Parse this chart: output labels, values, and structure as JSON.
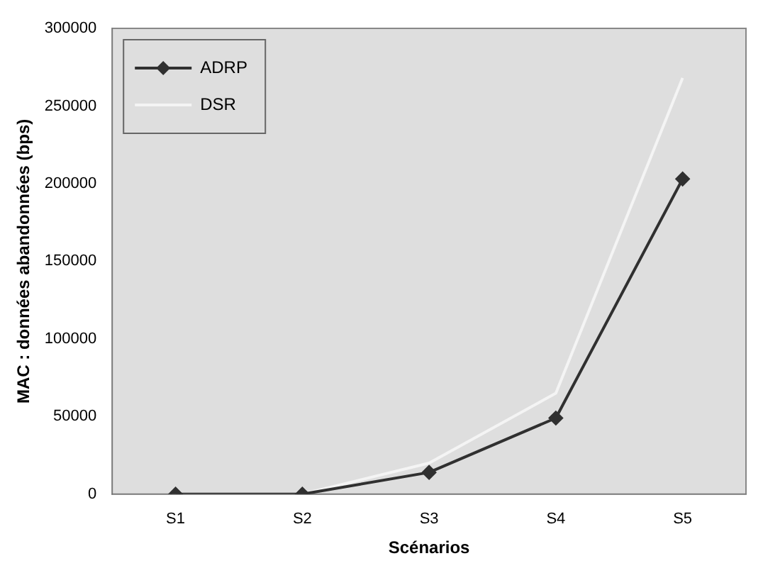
{
  "chart_data": {
    "type": "line",
    "xlabel": "Scénarios",
    "ylabel": "MAC : données abandonnées (bps)",
    "categories": [
      "S1",
      "S2",
      "S3",
      "S4",
      "S5"
    ],
    "series": [
      {
        "name": "ADRP",
        "color": "#303030",
        "values": [
          0,
          0,
          14000,
          49000,
          203000
        ],
        "marker": "diamond"
      },
      {
        "name": "DSR",
        "color": "#f4f4f4",
        "values": [
          0,
          0,
          20000,
          65000,
          268000
        ],
        "marker": "none"
      }
    ],
    "ylim": [
      0,
      300000
    ],
    "yticks": [
      0,
      50000,
      100000,
      150000,
      200000,
      250000,
      300000
    ],
    "grid": false,
    "legend": "top left",
    "line_style": "solid"
  }
}
